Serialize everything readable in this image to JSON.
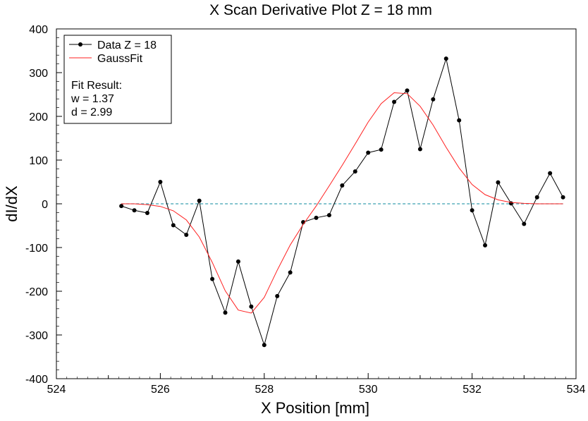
{
  "chart_data": {
    "type": "line",
    "title": "X Scan Derivative Plot Z = 18 mm",
    "xlabel": "X Position [mm]",
    "ylabel": "dI/dX",
    "xlim": [
      524,
      534
    ],
    "ylim": [
      -400,
      400
    ],
    "x_ticks": [
      524,
      526,
      528,
      530,
      532,
      534
    ],
    "y_ticks": [
      400,
      300,
      200,
      100,
      0,
      -100,
      -200,
      -300,
      -400
    ],
    "x_tick_labels": [
      "524",
      "526",
      "528",
      "530",
      "532",
      "534"
    ],
    "y_tick_labels": [
      "400",
      "300",
      "200",
      "100",
      "0",
      "-100",
      "-200",
      "-300",
      "-400"
    ],
    "grid": false,
    "legend_position": "top-left",
    "legend": {
      "data_label": "Data Z = 18",
      "fit_label": "GaussFit",
      "fit_result_title": "Fit Result:",
      "fit_w": "w = 1.37",
      "fit_d": "d = 2.99"
    },
    "colors": {
      "data": "#000000",
      "fit": "#ff2020",
      "zero_line": "#3aa0b0"
    },
    "series": [
      {
        "name": "Data Z = 18",
        "style": "line+markers",
        "x": [
          525.25,
          525.5,
          525.75,
          526.0,
          526.25,
          526.5,
          526.75,
          527.0,
          527.25,
          527.5,
          527.75,
          528.0,
          528.25,
          528.5,
          528.75,
          529.0,
          529.25,
          529.5,
          529.75,
          530.0,
          530.25,
          530.5,
          530.75,
          531.0,
          531.25,
          531.5,
          531.75,
          532.0,
          532.25,
          532.5,
          532.75,
          533.0,
          533.25,
          533.5,
          533.75
        ],
        "y": [
          -5,
          -15,
          -21,
          50,
          -49,
          -71,
          7,
          -172,
          -249,
          -132,
          -235,
          -323,
          -211,
          -157,
          -42,
          -32,
          -26,
          42,
          74,
          117,
          124,
          233,
          259,
          125,
          239,
          332,
          191,
          -15,
          -95,
          49,
          1,
          -46,
          15,
          70,
          15
        ]
      },
      {
        "name": "GaussFit",
        "style": "line",
        "x": [
          525.25,
          525.5,
          525.75,
          526.0,
          526.25,
          526.5,
          526.75,
          527.0,
          527.25,
          527.5,
          527.75,
          528.0,
          528.25,
          528.5,
          528.75,
          529.0,
          529.25,
          529.5,
          529.75,
          530.0,
          530.25,
          530.5,
          530.75,
          531.0,
          531.25,
          531.5,
          531.75,
          532.0,
          532.25,
          532.5,
          532.75,
          533.0,
          533.25,
          533.5,
          533.75
        ],
        "y": [
          0,
          0,
          -2,
          -6,
          -16,
          -37,
          -76,
          -134,
          -199,
          -243,
          -250,
          -214,
          -152,
          -94,
          -47,
          -5,
          41,
          88,
          137,
          187,
          229,
          254,
          252,
          223,
          180,
          129,
          82,
          44,
          21,
          9,
          3,
          1,
          0,
          0,
          0
        ]
      }
    ],
    "reference_line": {
      "y": 0,
      "x_range": [
        525.25,
        533.75
      ],
      "style": "dashed"
    }
  }
}
